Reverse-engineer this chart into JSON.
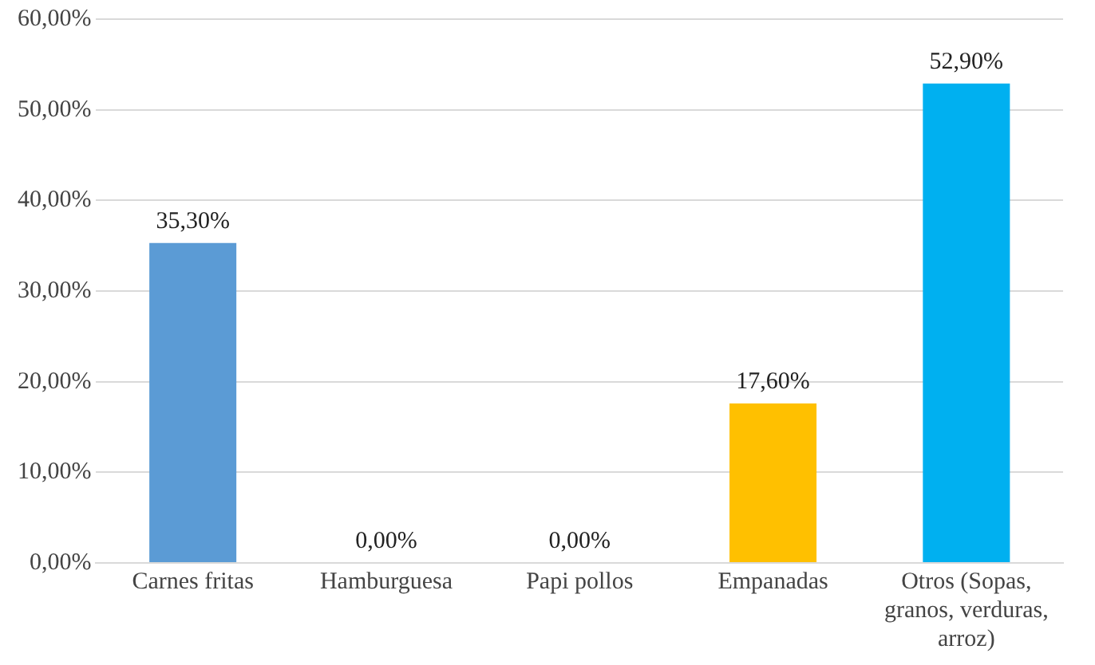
{
  "chart_data": {
    "type": "bar",
    "categories": [
      "Carnes fritas",
      "Hamburguesa",
      "Papi pollos",
      "Empanadas",
      "Otros (Sopas, granos, verduras, arroz)"
    ],
    "values": [
      35.3,
      0,
      0,
      17.6,
      52.9
    ],
    "colors": [
      "#5b9bd5",
      "#5b9bd5",
      "#5b9bd5",
      "#ffc000",
      "#00b0f0"
    ],
    "value_labels": [
      "35,30%",
      "0,00%",
      "0,00%",
      "17,60%",
      "52,90%"
    ],
    "ylim": [
      0,
      60
    ],
    "yticks": [
      {
        "value": 0,
        "label": "0,00%"
      },
      {
        "value": 10,
        "label": "10,00%"
      },
      {
        "value": 20,
        "label": "20,00%"
      },
      {
        "value": 30,
        "label": "30,00%"
      },
      {
        "value": 40,
        "label": "40,00%"
      },
      {
        "value": 50,
        "label": "50,00%"
      },
      {
        "value": 60,
        "label": "60,00%"
      }
    ],
    "grid": "y",
    "legend": false
  }
}
